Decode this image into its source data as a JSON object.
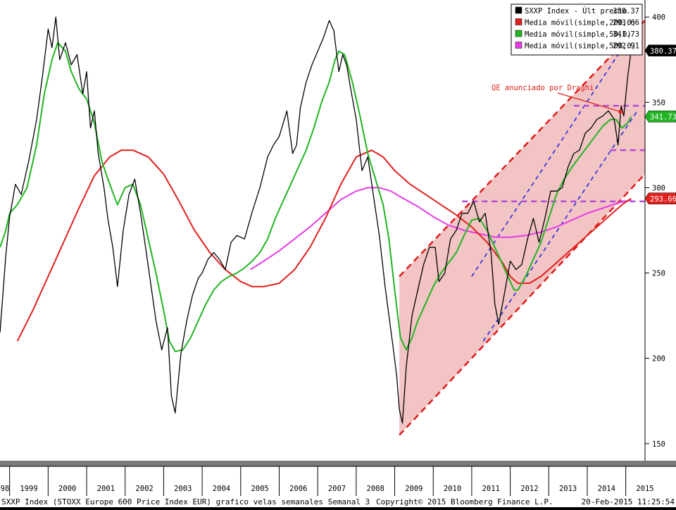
{
  "footer": {
    "left": "SXXP Index (STOXX Europe 600 Price Index EUR) grafico velas semanales  Semanal 3",
    "copyright": "Copyright© 2015 Bloomberg Finance L.P.",
    "timestamp": "20-Feb-2015 11:25:54"
  },
  "chart_data": {
    "type": "line",
    "title": "",
    "xlabel": "",
    "ylabel": "",
    "grid": false,
    "legend_position": "top-right",
    "ylim": [
      140,
      410
    ],
    "xlim": [
      1998.75,
      2015.5
    ],
    "y_ticks": [
      150,
      200,
      250,
      300,
      350,
      400
    ],
    "y_tick_labels": [
      "150",
      "200",
      "250",
      "300",
      "350",
      "400"
    ],
    "x_tick_labels": [
      "98",
      "1999",
      "2000",
      "2001",
      "2002",
      "2003",
      "2004",
      "2005",
      "2006",
      "2007",
      "2008",
      "2009",
      "2010",
      "2011",
      "2012",
      "2013",
      "2014",
      "2015"
    ],
    "x_tick_years": [
      1998,
      1999,
      2000,
      2001,
      2002,
      2003,
      2004,
      2005,
      2006,
      2007,
      2008,
      2009,
      2010,
      2011,
      2012,
      2013,
      2014,
      2015
    ],
    "legend": [
      {
        "name": "SXXP Index - Últ precio",
        "value": "380.37",
        "color": "#000000"
      },
      {
        "name": "Media móvil(simple,200,0)",
        "value": "293.66",
        "color": "#e0201c"
      },
      {
        "name": "Media móvil(simple,50,0)",
        "value": "341.73",
        "color": "#22b422"
      },
      {
        "name": "Media móvil(simple,500,0)",
        "value": "292.91",
        "color": "#e63be6"
      }
    ],
    "price_tags": [
      {
        "value": "380.37",
        "y": 380.37,
        "bg": "#000000",
        "fg": "#ffffff"
      },
      {
        "value": "341.73",
        "y": 341.73,
        "bg": "#22b422",
        "fg": "#ffffff"
      },
      {
        "value": "293.66",
        "y": 293.66,
        "bg": "#e0201c",
        "fg": "#ffffff"
      }
    ],
    "annotation": {
      "text": "QE anunciado por Draghi",
      "color": "#e0201c",
      "arrow_to": [
        2014.95,
        344
      ]
    },
    "series": [
      {
        "name": "SXXP Index - Últ precio",
        "color": "#000000",
        "x": [
          1998.75,
          1998.9,
          1999.0,
          1999.15,
          1999.3,
          1999.5,
          1999.7,
          1999.85,
          2000.0,
          2000.1,
          2000.2,
          2000.3,
          2000.45,
          2000.6,
          2000.75,
          2000.9,
          2001.0,
          2001.1,
          2001.2,
          2001.3,
          2001.45,
          2001.55,
          2001.68,
          2001.8,
          2001.95,
          2002.1,
          2002.25,
          2002.4,
          2002.55,
          2002.7,
          2002.8,
          2002.95,
          2003.1,
          2003.2,
          2003.3,
          2003.45,
          2003.6,
          2003.75,
          2003.9,
          2004.0,
          2004.15,
          2004.3,
          2004.45,
          2004.6,
          2004.75,
          2004.9,
          2005.1,
          2005.3,
          2005.5,
          2005.7,
          2005.85,
          2006.0,
          2006.2,
          2006.35,
          2006.45,
          2006.55,
          2006.7,
          2006.85,
          2007.0,
          2007.15,
          2007.3,
          2007.42,
          2007.55,
          2007.65,
          2007.75,
          2007.88,
          2008.0,
          2008.15,
          2008.3,
          2008.45,
          2008.6,
          2008.75,
          2008.85,
          2008.95,
          2009.05,
          2009.12,
          2009.2,
          2009.3,
          2009.45,
          2009.6,
          2009.75,
          2009.9,
          2010.05,
          2010.15,
          2010.3,
          2010.45,
          2010.6,
          2010.75,
          2010.9,
          2011.05,
          2011.2,
          2011.35,
          2011.5,
          2011.6,
          2011.7,
          2011.85,
          2012.0,
          2012.15,
          2012.3,
          2012.45,
          2012.6,
          2012.75,
          2012.9,
          2013.05,
          2013.2,
          2013.35,
          2013.5,
          2013.65,
          2013.8,
          2013.95,
          2014.1,
          2014.25,
          2014.4,
          2014.55,
          2014.7,
          2014.8,
          2014.88,
          2014.95,
          2015.05,
          2015.14
        ],
        "values": [
          215,
          260,
          283,
          302,
          296,
          316,
          340,
          365,
          393,
          382,
          400,
          375,
          385,
          372,
          378,
          355,
          368,
          335,
          345,
          320,
          300,
          282,
          265,
          242,
          275,
          296,
          305,
          285,
          262,
          238,
          222,
          205,
          218,
          178,
          168,
          203,
          222,
          237,
          247,
          250,
          258,
          262,
          258,
          252,
          268,
          272,
          270,
          286,
          300,
          318,
          325,
          330,
          345,
          320,
          325,
          347,
          362,
          372,
          380,
          388,
          398,
          392,
          368,
          378,
          372,
          355,
          340,
          310,
          318,
          295,
          272,
          242,
          225,
          208,
          190,
          170,
          162,
          195,
          225,
          240,
          255,
          265,
          265,
          245,
          250,
          270,
          275,
          285,
          285,
          292,
          280,
          285,
          262,
          232,
          220,
          238,
          257,
          252,
          255,
          270,
          282,
          268,
          282,
          298,
          298,
          300,
          312,
          320,
          322,
          332,
          335,
          340,
          342,
          345,
          340,
          325,
          348,
          342,
          365,
          380.37
        ]
      },
      {
        "name": "Media móvil(simple,50,0)",
        "color": "#22b422",
        "x": [
          1998.75,
          1998.9,
          1999.0,
          1999.2,
          1999.45,
          1999.7,
          1999.9,
          2000.1,
          2000.25,
          2000.45,
          2000.6,
          2000.8,
          2001.0,
          2001.2,
          2001.4,
          2001.6,
          2001.8,
          2002.0,
          2002.2,
          2002.4,
          2002.6,
          2002.8,
          2003.0,
          2003.15,
          2003.3,
          2003.5,
          2003.7,
          2003.9,
          2004.1,
          2004.3,
          2004.5,
          2004.7,
          2004.9,
          2005.1,
          2005.3,
          2005.5,
          2005.7,
          2005.9,
          2006.1,
          2006.3,
          2006.5,
          2006.7,
          2006.9,
          2007.1,
          2007.3,
          2007.45,
          2007.55,
          2007.7,
          2007.9,
          2008.1,
          2008.3,
          2008.5,
          2008.7,
          2008.85,
          2009.0,
          2009.15,
          2009.3,
          2009.45,
          2009.6,
          2009.8,
          2010.0,
          2010.2,
          2010.4,
          2010.6,
          2010.8,
          2011.0,
          2011.2,
          2011.4,
          2011.6,
          2011.8,
          2012.0,
          2012.1,
          2012.2,
          2012.4,
          2012.6,
          2012.8,
          2013.0,
          2013.2,
          2013.4,
          2013.6,
          2013.8,
          2014.0,
          2014.2,
          2014.4,
          2014.6,
          2014.75,
          2014.9,
          2015.05,
          2015.14
        ],
        "values": [
          265,
          275,
          285,
          290,
          300,
          325,
          355,
          375,
          385,
          380,
          368,
          358,
          352,
          338,
          315,
          302,
          290,
          300,
          302,
          290,
          270,
          250,
          228,
          210,
          204,
          205,
          212,
          222,
          232,
          240,
          245,
          248,
          250,
          253,
          257,
          262,
          270,
          282,
          292,
          302,
          312,
          322,
          335,
          350,
          362,
          375,
          380,
          378,
          362,
          342,
          320,
          305,
          290,
          270,
          240,
          212,
          205,
          212,
          222,
          232,
          242,
          250,
          256,
          262,
          272,
          281,
          282,
          275,
          265,
          255,
          245,
          240,
          240,
          248,
          258,
          268,
          282,
          296,
          305,
          312,
          318,
          324,
          330,
          336,
          340,
          340,
          335,
          338,
          341.73
        ]
      },
      {
        "name": "Media móvil(simple,200,0)",
        "color": "#e0201c",
        "x": [
          1999.2,
          1999.6,
          2000.0,
          2000.4,
          2000.8,
          2001.2,
          2001.6,
          2001.9,
          2002.2,
          2002.6,
          2003.0,
          2003.4,
          2003.8,
          2004.2,
          2004.6,
          2005.0,
          2005.3,
          2005.6,
          2006.0,
          2006.4,
          2006.8,
          2007.2,
          2007.6,
          2008.0,
          2008.4,
          2008.7,
          2009.0,
          2009.4,
          2009.8,
          2010.2,
          2010.6,
          2011.0,
          2011.4,
          2011.8,
          2012.0,
          2012.2,
          2012.5,
          2012.8,
          2013.1,
          2013.4,
          2013.7,
          2014.0,
          2014.3,
          2014.6,
          2014.9,
          2015.14
        ],
        "values": [
          210,
          228,
          248,
          268,
          288,
          307,
          318,
          322,
          322,
          318,
          308,
          292,
          275,
          262,
          252,
          245,
          242,
          242,
          244,
          252,
          265,
          282,
          302,
          318,
          322,
          318,
          310,
          302,
          296,
          290,
          284,
          277,
          268,
          256,
          248,
          244,
          244,
          248,
          254,
          260,
          266,
          272,
          278,
          284,
          290,
          293.66
        ]
      },
      {
        "name": "Media móvil(simple,500,0)",
        "color": "#e63be6",
        "x": [
          2005.25,
          2005.6,
          2006.0,
          2006.4,
          2006.8,
          2007.2,
          2007.6,
          2008.0,
          2008.3,
          2008.6,
          2008.9,
          2009.2,
          2009.6,
          2010.0,
          2010.4,
          2010.8,
          2011.2,
          2011.6,
          2012.0,
          2012.4,
          2012.8,
          2013.2,
          2013.6,
          2014.0,
          2014.4,
          2014.8,
          2015.14
        ],
        "values": [
          252,
          257,
          263,
          270,
          277,
          285,
          293,
          298,
          300,
          300,
          298,
          294,
          289,
          283,
          278,
          275,
          273,
          271,
          271,
          272,
          274,
          277,
          281,
          285,
          288,
          291,
          292.91
        ]
      }
    ],
    "channel": {
      "fill": "#f2c4c4",
      "upper_line": [
        [
          2009.12,
          248
        ],
        [
          2015.5,
          398
        ]
      ],
      "lower_line": [
        [
          2009.12,
          155
        ],
        [
          2015.5,
          308
        ]
      ],
      "dash_color": "#e01a1a"
    },
    "inner_channel": {
      "color": "#2a2ad8",
      "upper_line": [
        [
          2011.0,
          248
        ],
        [
          2015.3,
          395
        ]
      ],
      "lower_line": [
        [
          2011.3,
          210
        ],
        [
          2015.3,
          345
        ]
      ]
    },
    "levels": [
      {
        "y": 292,
        "x_from": 2010.75,
        "x_to": 2015.5,
        "color": "#b44bd8"
      },
      {
        "y": 322,
        "x_from": 2014.6,
        "x_to": 2015.5,
        "color": "#b44bd8"
      },
      {
        "y": 348,
        "x_from": 2013.65,
        "x_to": 2015.5,
        "color": "#b44bd8"
      }
    ]
  }
}
